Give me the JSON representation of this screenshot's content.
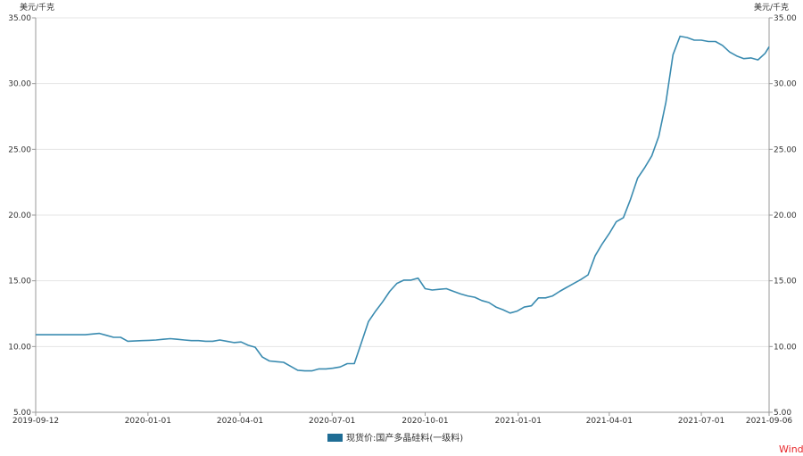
{
  "chart_data": {
    "type": "line",
    "unit_left": "美元/千克",
    "unit_right": "美元/千克",
    "ylim": [
      5,
      35
    ],
    "yticks": [
      "5.00",
      "10.00",
      "15.00",
      "20.00",
      "25.00",
      "30.00",
      "35.00"
    ],
    "xlim": [
      "2019-09-12",
      "2021-09-06"
    ],
    "xticks": [
      "2019-09-12",
      "2020-01-01",
      "2020-04-01",
      "2020-07-01",
      "2020-10-01",
      "2021-01-01",
      "2021-04-01",
      "2021-07-01",
      "2021-09-06"
    ],
    "grid": "horizontal",
    "legend_position": "bottom",
    "series": [
      {
        "name": "现货价:国产多晶硅料(一级料)",
        "color": "#3a8bb0",
        "x": [
          "2019-09-12",
          "2019-09-19",
          "2019-09-26",
          "2019-10-03",
          "2019-10-10",
          "2019-10-17",
          "2019-10-24",
          "2019-10-31",
          "2019-11-07",
          "2019-11-14",
          "2019-11-21",
          "2019-11-28",
          "2019-12-05",
          "2019-12-12",
          "2019-12-19",
          "2019-12-26",
          "2020-01-02",
          "2020-01-09",
          "2020-01-16",
          "2020-01-23",
          "2020-01-30",
          "2020-02-06",
          "2020-02-13",
          "2020-02-20",
          "2020-02-27",
          "2020-03-05",
          "2020-03-12",
          "2020-03-19",
          "2020-03-26",
          "2020-04-02",
          "2020-04-09",
          "2020-04-16",
          "2020-04-23",
          "2020-04-30",
          "2020-05-07",
          "2020-05-14",
          "2020-05-21",
          "2020-05-28",
          "2020-06-04",
          "2020-06-11",
          "2020-06-18",
          "2020-06-25",
          "2020-07-02",
          "2020-07-09",
          "2020-07-16",
          "2020-07-23",
          "2020-07-30",
          "2020-08-06",
          "2020-08-13",
          "2020-08-20",
          "2020-08-27",
          "2020-09-03",
          "2020-09-10",
          "2020-09-17",
          "2020-09-24",
          "2020-10-01",
          "2020-10-08",
          "2020-10-15",
          "2020-10-22",
          "2020-10-29",
          "2020-11-05",
          "2020-11-12",
          "2020-11-19",
          "2020-11-26",
          "2020-12-03",
          "2020-12-10",
          "2020-12-17",
          "2020-12-24",
          "2020-12-31",
          "2021-01-07",
          "2021-01-14",
          "2021-01-21",
          "2021-01-28",
          "2021-02-04",
          "2021-02-11",
          "2021-02-18",
          "2021-02-25",
          "2021-03-04",
          "2021-03-11",
          "2021-03-18",
          "2021-03-25",
          "2021-04-01",
          "2021-04-08",
          "2021-04-15",
          "2021-04-22",
          "2021-04-29",
          "2021-05-06",
          "2021-05-13",
          "2021-05-20",
          "2021-05-27",
          "2021-06-03",
          "2021-06-10",
          "2021-06-17",
          "2021-06-24",
          "2021-07-01",
          "2021-07-08",
          "2021-07-15",
          "2021-07-22",
          "2021-07-29",
          "2021-08-05",
          "2021-08-12",
          "2021-08-19",
          "2021-08-26",
          "2021-09-02",
          "2021-09-06"
        ],
        "values": [
          10.9,
          10.9,
          10.9,
          10.9,
          10.9,
          10.9,
          10.9,
          10.9,
          10.95,
          11.0,
          10.85,
          10.7,
          10.7,
          10.4,
          10.42,
          10.45,
          10.47,
          10.5,
          10.55,
          10.6,
          10.55,
          10.5,
          10.45,
          10.45,
          10.4,
          10.4,
          10.5,
          10.4,
          10.3,
          10.35,
          10.1,
          9.95,
          9.2,
          8.9,
          8.85,
          8.8,
          8.5,
          8.2,
          8.15,
          8.15,
          8.3,
          8.3,
          8.35,
          8.45,
          8.7,
          8.7,
          10.3,
          11.9,
          12.7,
          13.4,
          14.2,
          14.8,
          15.05,
          15.05,
          15.2,
          14.4,
          14.3,
          14.35,
          14.4,
          14.2,
          14.0,
          13.85,
          13.75,
          13.5,
          13.35,
          13.0,
          12.8,
          12.55,
          12.7,
          13.0,
          13.1,
          13.7,
          13.7,
          13.85,
          14.2,
          14.5,
          14.8,
          15.1,
          15.45,
          16.9,
          17.8,
          18.6,
          19.5,
          19.8,
          21.2,
          22.8,
          23.6,
          24.5,
          26.0,
          28.6,
          32.2,
          33.6,
          33.5,
          33.3,
          33.3,
          33.2,
          33.2,
          32.9,
          32.4,
          32.1,
          31.9,
          31.95,
          31.8,
          32.3,
          32.8
        ]
      }
    ]
  },
  "legend": {
    "label": "现货价:国产多晶硅料(一级料)"
  },
  "brand": "Wind"
}
